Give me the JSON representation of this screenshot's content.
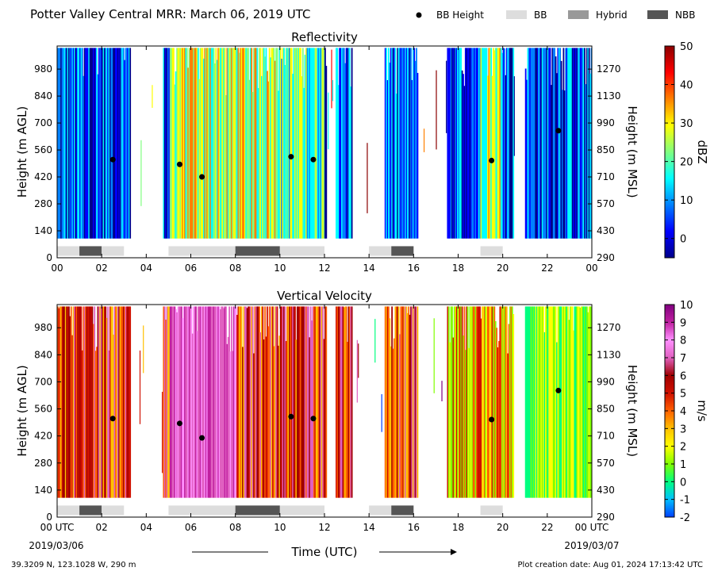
{
  "header": {
    "title": "Potter Valley Central MRR:  March 06, 2019 UTC",
    "legend": [
      {
        "label": "BB Height",
        "kind": "dot",
        "color": "#000000"
      },
      {
        "label": "BB",
        "kind": "bar",
        "color": "#dddddd"
      },
      {
        "label": "Hybrid",
        "kind": "bar",
        "color": "#999999"
      },
      {
        "label": "NBB",
        "kind": "bar",
        "color": "#555555"
      }
    ]
  },
  "footer": {
    "location": "39.3209 N, 123.1028 W, 290 m",
    "created": "Plot creation date: Aug 01, 2024 17:13:42 UTC",
    "date_start": "2019/03/06",
    "date_end": "2019/03/07",
    "xlabel": "Time (UTC)"
  },
  "chart_data": [
    {
      "type": "heatmap",
      "title": "Reflectivity",
      "xlabel": "",
      "ylabel": "Height (m AGL)",
      "y2label": "Height (m MSL)",
      "xlim": [
        0,
        24
      ],
      "ylim": [
        0,
        1100
      ],
      "x_ticks": [
        "00",
        "02",
        "04",
        "06",
        "08",
        "10",
        "12",
        "14",
        "16",
        "18",
        "20",
        "22",
        "00"
      ],
      "y_ticks": [
        0,
        140,
        280,
        420,
        560,
        700,
        840,
        980
      ],
      "y2_ticks": [
        290,
        430,
        570,
        710,
        850,
        990,
        1130,
        1270
      ],
      "colorbar": {
        "label": "dBZ",
        "min": -5,
        "max": 50,
        "ticks": [
          0,
          10,
          20,
          30,
          40,
          50
        ],
        "colors": [
          "#00008b",
          "#0000ff",
          "#0080ff",
          "#00ffff",
          "#80ff80",
          "#ffff00",
          "#ff8000",
          "#ff0000",
          "#8b0000"
        ]
      },
      "gaps_hours": [
        [
          3.25,
          4.7
        ],
        [
          12.1,
          12.5
        ],
        [
          13.25,
          14.7
        ],
        [
          16.2,
          17.5
        ],
        [
          20.5,
          21.0
        ]
      ],
      "bb_height_points": [
        [
          2.5,
          510
        ],
        [
          5.5,
          485
        ],
        [
          6.5,
          420
        ],
        [
          10.5,
          525
        ],
        [
          11.5,
          510
        ],
        [
          19.5,
          505
        ],
        [
          22.5,
          660
        ]
      ],
      "bright_band_segments": [
        {
          "start": 0.0,
          "end": 1.0,
          "type": "BB"
        },
        {
          "start": 1.0,
          "end": 2.0,
          "type": "NBB"
        },
        {
          "start": 2.0,
          "end": 3.0,
          "type": "BB"
        },
        {
          "start": 5.0,
          "end": 8.0,
          "type": "BB"
        },
        {
          "start": 8.0,
          "end": 10.0,
          "type": "NBB"
        },
        {
          "start": 10.0,
          "end": 12.0,
          "type": "BB"
        },
        {
          "start": 14.0,
          "end": 15.0,
          "type": "BB"
        },
        {
          "start": 15.0,
          "end": 16.0,
          "type": "NBB"
        },
        {
          "start": 19.0,
          "end": 20.0,
          "type": "BB"
        }
      ]
    },
    {
      "type": "heatmap",
      "title": "Vertical Velocity",
      "xlabel": "Time (UTC)",
      "ylabel": "Height (m AGL)",
      "y2label": "Height (m MSL)",
      "xlim": [
        0,
        24
      ],
      "ylim": [
        0,
        1100
      ],
      "x_ticks": [
        "00 UTC",
        "02",
        "04",
        "06",
        "08",
        "10",
        "12",
        "14",
        "16",
        "18",
        "20",
        "22",
        "00 UTC"
      ],
      "y_ticks": [
        0,
        140,
        280,
        420,
        560,
        700,
        840,
        980
      ],
      "y2_ticks": [
        290,
        430,
        570,
        710,
        850,
        990,
        1130,
        1270
      ],
      "colorbar": {
        "label": "m/s",
        "min": -2,
        "max": 10,
        "ticks": [
          -2,
          -1,
          0,
          1,
          2,
          3,
          4,
          5,
          6,
          7,
          8,
          9,
          10
        ],
        "colors": [
          "#0040ff",
          "#00c0ff",
          "#00ff80",
          "#80ff00",
          "#ffff00",
          "#ffc000",
          "#ff6000",
          "#d01000",
          "#a00000",
          "#e060c0",
          "#ff90ff",
          "#c020a0",
          "#800080"
        ]
      },
      "gaps_hours": [
        [
          3.25,
          4.7
        ],
        [
          12.1,
          12.5
        ],
        [
          13.25,
          14.7
        ],
        [
          16.2,
          17.5
        ],
        [
          20.5,
          21.0
        ]
      ],
      "bb_height_points": [
        [
          2.5,
          510
        ],
        [
          5.5,
          485
        ],
        [
          6.5,
          410
        ],
        [
          10.5,
          520
        ],
        [
          11.5,
          510
        ],
        [
          19.5,
          505
        ],
        [
          22.5,
          655
        ]
      ],
      "bright_band_segments": [
        {
          "start": 0.0,
          "end": 1.0,
          "type": "BB"
        },
        {
          "start": 1.0,
          "end": 2.0,
          "type": "NBB"
        },
        {
          "start": 2.0,
          "end": 3.0,
          "type": "BB"
        },
        {
          "start": 5.0,
          "end": 8.0,
          "type": "BB"
        },
        {
          "start": 8.0,
          "end": 10.0,
          "type": "NBB"
        },
        {
          "start": 10.0,
          "end": 12.0,
          "type": "BB"
        },
        {
          "start": 14.0,
          "end": 15.0,
          "type": "BB"
        },
        {
          "start": 15.0,
          "end": 16.0,
          "type": "NBB"
        },
        {
          "start": 19.0,
          "end": 20.0,
          "type": "BB"
        }
      ]
    }
  ]
}
